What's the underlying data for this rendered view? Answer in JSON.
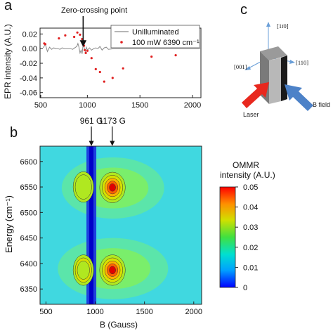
{
  "panels": {
    "a": "a",
    "b": "b",
    "c": "c"
  },
  "chart_data": [
    {
      "type": "scatter",
      "panel": "a",
      "xlabel": "",
      "ylabel": "EPR intensity (A.U.)",
      "xlim": [
        550,
        2080
      ],
      "ylim": [
        -0.067,
        0.028
      ],
      "xticks": [
        500,
        1000,
        1500,
        2000
      ],
      "xtick_labels": [
        "500",
        "1000",
        "1500",
        "2000"
      ],
      "yticks": [
        0.02,
        0.0,
        -0.02,
        -0.04,
        -0.06
      ],
      "ytick_labels": [
        "0.02",
        "0.00",
        "-0.02",
        "-0.04",
        "-0.06"
      ],
      "annotation": "Zero-crossing point",
      "annotation_x": 960,
      "series": [
        {
          "name": "Unilluminated",
          "style": "line",
          "color": "#8a8a8a",
          "x": [
            580,
            600,
            620,
            640,
            660,
            680,
            700,
            720,
            740,
            760,
            780,
            800,
            820,
            840,
            860,
            880,
            900,
            910,
            920,
            930,
            940,
            950,
            960,
            970,
            980,
            990,
            1000,
            1020,
            1040,
            1060,
            1080,
            1100,
            1120,
            1140,
            1160,
            1180,
            1200,
            1250,
            1300,
            1350,
            1400,
            1500,
            1600,
            1700,
            1800,
            1900,
            2000,
            2080
          ],
          "y": [
            0.001,
            0.006,
            -0.004,
            0.002,
            -0.001,
            0.001,
            0.0,
            0.0,
            -0.001,
            0.001,
            0.0,
            0.0,
            0.0,
            0.0,
            -0.001,
            0.001,
            0.003,
            0.007,
            0.002,
            -0.006,
            -0.002,
            -0.007,
            0.007,
            0.001,
            -0.004,
            0.002,
            -0.002,
            0.001,
            -0.002,
            0.0,
            0.001,
            0.0,
            0.003,
            -0.002,
            0.001,
            0.002,
            -0.001,
            0.0,
            0.0,
            0.0,
            0.0,
            0.0,
            0.0,
            0.0,
            0.0,
            0.0,
            0.0,
            0.0
          ]
        },
        {
          "name": "100 mW 6390 cm⁻¹",
          "style": "points",
          "color": "#e02020",
          "x": [
            590,
            600,
            730,
            790,
            875,
            905,
            930,
            950,
            960,
            968,
            975,
            985,
            1000,
            1040,
            1080,
            1120,
            1160,
            1240,
            1340,
            1610,
            1840,
            2050
          ],
          "y": [
            0.007,
            0.006,
            0.014,
            0.018,
            0.016,
            0.022,
            0.019,
            0.013,
            0.006,
            0.004,
            -0.002,
            -0.006,
            -0.003,
            -0.013,
            -0.028,
            -0.032,
            -0.045,
            -0.04,
            -0.027,
            -0.011,
            -0.009,
            0.003
          ]
        }
      ]
    },
    {
      "type": "heatmap",
      "panel": "b",
      "xlabel": "B (Gauss)",
      "ylabel": "Energy (cm⁻¹)",
      "xlim": [
        440,
        2080
      ],
      "ylim": [
        6320,
        6630
      ],
      "xticks": [
        500,
        1000,
        1500,
        2000
      ],
      "xtick_labels": [
        "500",
        "1000",
        "1500",
        "2000"
      ],
      "yticks": [
        6350,
        6400,
        6450,
        6500,
        6550,
        6600
      ],
      "ytick_labels": [
        "6350",
        "6400",
        "6450",
        "6500",
        "6550",
        "6600"
      ],
      "markers": [
        {
          "label": "961 G",
          "x": 961
        },
        {
          "label": "1173 G",
          "x": 1173
        }
      ],
      "colorbar": {
        "title_line1": "OMMR",
        "title_line2": "intensity (A.U.)",
        "min": 0,
        "max": 0.05,
        "ticks": [
          0.05,
          0.04,
          0.03,
          0.02,
          0.01,
          0
        ],
        "tick_labels": [
          "0.05",
          "0.04",
          "0.03",
          "0.02",
          "0.01",
          "0"
        ],
        "colors": [
          "#0000ff",
          "#00b0ff",
          "#00e0c0",
          "#40e040",
          "#d0e000",
          "#ff9000",
          "#ff0000"
        ]
      },
      "peaks": [
        {
          "b": 1175,
          "energy": 6387,
          "intensity": 0.05
        },
        {
          "b": 1175,
          "energy": 6549,
          "intensity": 0.05
        },
        {
          "b": 880,
          "energy": 6387,
          "intensity": 0.025
        },
        {
          "b": 880,
          "energy": 6550,
          "intensity": 0.023
        }
      ],
      "dip_b": 961
    }
  ],
  "diagram_c": {
    "axis_top": "[1ī0]",
    "axis_left": "[001]",
    "axis_right": "[110]",
    "laser_label": "Laser",
    "field_label": "B field",
    "laser_color": "#e8281e",
    "field_color": "#4d82c8"
  }
}
